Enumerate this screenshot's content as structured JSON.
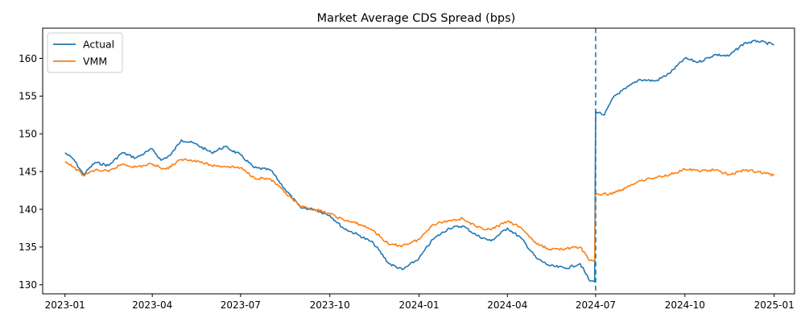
{
  "chart_data": {
    "type": "line",
    "title": "Market Average CDS Spread (bps)",
    "xlabel": "",
    "ylabel": "",
    "x_range": [
      "2022-12-09",
      "2025-01-22"
    ],
    "ylim": [
      128.8,
      164.0
    ],
    "x_ticks": [
      "2023-01",
      "2023-04",
      "2023-07",
      "2023-10",
      "2024-01",
      "2024-04",
      "2024-07",
      "2024-10",
      "2025-01"
    ],
    "y_ticks": [
      130,
      135,
      140,
      145,
      150,
      155,
      160
    ],
    "grid": false,
    "legend_position": "top-left",
    "vline": {
      "x": "2024-07-01",
      "style": "dashed",
      "color": "#1f77b4"
    },
    "series": [
      {
        "name": "Actual",
        "color": "#1f77b4",
        "points": [
          [
            "2023-01-01",
            147.5
          ],
          [
            "2023-01-10",
            146.6
          ],
          [
            "2023-01-20",
            144.6
          ],
          [
            "2023-02-01",
            146.2
          ],
          [
            "2023-02-15",
            145.8
          ],
          [
            "2023-03-01",
            147.5
          ],
          [
            "2023-03-15",
            146.8
          ],
          [
            "2023-04-01",
            148.0
          ],
          [
            "2023-04-10",
            146.5
          ],
          [
            "2023-04-20",
            147.2
          ],
          [
            "2023-05-01",
            149.2
          ],
          [
            "2023-05-15",
            148.7
          ],
          [
            "2023-06-01",
            147.5
          ],
          [
            "2023-06-15",
            148.3
          ],
          [
            "2023-07-01",
            147.2
          ],
          [
            "2023-07-15",
            145.5
          ],
          [
            "2023-08-01",
            145.2
          ],
          [
            "2023-08-15",
            142.8
          ],
          [
            "2023-09-01",
            140.2
          ],
          [
            "2023-09-15",
            140.0
          ],
          [
            "2023-10-01",
            139.2
          ],
          [
            "2023-10-15",
            137.5
          ],
          [
            "2023-11-01",
            136.5
          ],
          [
            "2023-11-15",
            135.5
          ],
          [
            "2023-12-01",
            132.8
          ],
          [
            "2023-12-15",
            132.0
          ],
          [
            "2024-01-01",
            133.5
          ],
          [
            "2024-01-15",
            136.0
          ],
          [
            "2024-02-01",
            137.5
          ],
          [
            "2024-02-15",
            137.8
          ],
          [
            "2024-03-01",
            136.5
          ],
          [
            "2024-03-15",
            135.8
          ],
          [
            "2024-04-01",
            137.5
          ],
          [
            "2024-04-15",
            136.2
          ],
          [
            "2024-05-01",
            133.5
          ],
          [
            "2024-05-15",
            132.5
          ],
          [
            "2024-06-01",
            132.2
          ],
          [
            "2024-06-15",
            132.8
          ],
          [
            "2024-06-25",
            130.5
          ],
          [
            "2024-06-30",
            130.4
          ],
          [
            "2024-07-01",
            153.0
          ],
          [
            "2024-07-10",
            152.5
          ],
          [
            "2024-07-20",
            155.0
          ],
          [
            "2024-08-01",
            156.0
          ],
          [
            "2024-08-15",
            157.2
          ],
          [
            "2024-09-01",
            157.0
          ],
          [
            "2024-09-15",
            158.0
          ],
          [
            "2024-10-01",
            160.0
          ],
          [
            "2024-10-15",
            159.5
          ],
          [
            "2024-11-01",
            160.5
          ],
          [
            "2024-11-15",
            160.3
          ],
          [
            "2024-12-01",
            162.0
          ],
          [
            "2024-12-15",
            162.3
          ],
          [
            "2025-01-01",
            161.8
          ]
        ]
      },
      {
        "name": "VMM",
        "color": "#ff7f0e",
        "points": [
          [
            "2023-01-01",
            146.2
          ],
          [
            "2023-01-10",
            145.6
          ],
          [
            "2023-01-20",
            144.5
          ],
          [
            "2023-02-01",
            145.2
          ],
          [
            "2023-02-15",
            145.0
          ],
          [
            "2023-03-01",
            146.0
          ],
          [
            "2023-03-15",
            145.6
          ],
          [
            "2023-04-01",
            146.0
          ],
          [
            "2023-04-15",
            145.3
          ],
          [
            "2023-05-01",
            146.6
          ],
          [
            "2023-05-15",
            146.5
          ],
          [
            "2023-06-01",
            145.8
          ],
          [
            "2023-06-15",
            145.7
          ],
          [
            "2023-07-01",
            145.5
          ],
          [
            "2023-07-15",
            144.2
          ],
          [
            "2023-08-01",
            144.0
          ],
          [
            "2023-08-15",
            142.3
          ],
          [
            "2023-09-01",
            140.3
          ],
          [
            "2023-09-15",
            140.0
          ],
          [
            "2023-10-01",
            139.4
          ],
          [
            "2023-10-15",
            138.6
          ],
          [
            "2023-11-01",
            138.0
          ],
          [
            "2023-11-15",
            137.2
          ],
          [
            "2023-12-01",
            135.3
          ],
          [
            "2023-12-15",
            135.2
          ],
          [
            "2024-01-01",
            136.0
          ],
          [
            "2024-01-15",
            138.0
          ],
          [
            "2024-02-01",
            138.5
          ],
          [
            "2024-02-15",
            138.8
          ],
          [
            "2024-03-01",
            137.6
          ],
          [
            "2024-03-15",
            137.3
          ],
          [
            "2024-04-01",
            138.4
          ],
          [
            "2024-04-15",
            137.6
          ],
          [
            "2024-05-01",
            135.4
          ],
          [
            "2024-05-15",
            134.7
          ],
          [
            "2024-06-01",
            134.8
          ],
          [
            "2024-06-15",
            135.0
          ],
          [
            "2024-06-25",
            133.2
          ],
          [
            "2024-06-30",
            133.3
          ],
          [
            "2024-07-01",
            142.0
          ],
          [
            "2024-07-15",
            142.0
          ],
          [
            "2024-08-01",
            142.8
          ],
          [
            "2024-08-15",
            143.8
          ],
          [
            "2024-09-01",
            144.2
          ],
          [
            "2024-09-15",
            144.6
          ],
          [
            "2024-10-01",
            145.3
          ],
          [
            "2024-10-15",
            145.1
          ],
          [
            "2024-11-01",
            145.2
          ],
          [
            "2024-11-15",
            144.6
          ],
          [
            "2024-12-01",
            145.2
          ],
          [
            "2024-12-15",
            145.0
          ],
          [
            "2025-01-01",
            144.5
          ]
        ]
      }
    ]
  }
}
